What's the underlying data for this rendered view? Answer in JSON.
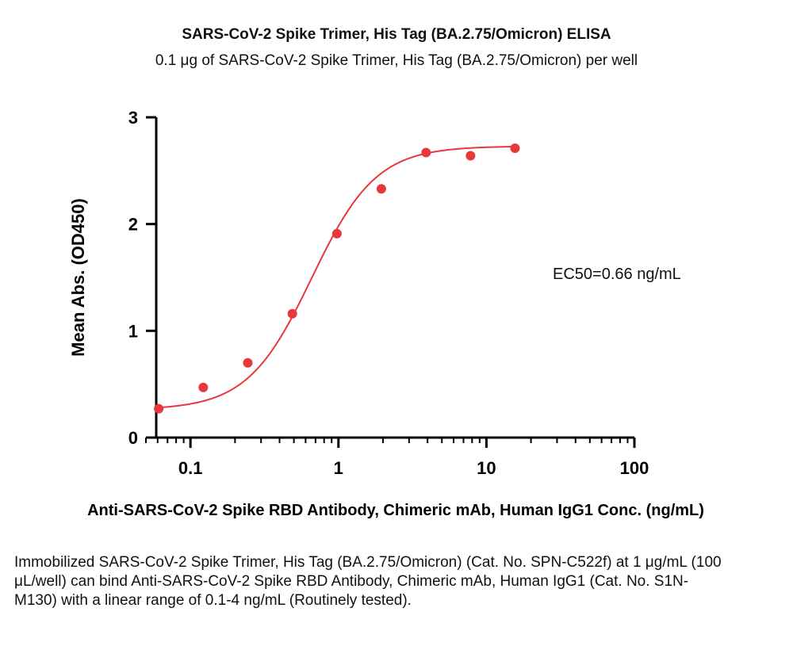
{
  "title": "SARS-CoV-2 Spike Trimer, His Tag (BA.2.75/Omicron) ELISA",
  "subtitle": "0.1 μg of SARS-CoV-2 Spike Trimer, His Tag (BA.2.75/Omicron) per well",
  "caption": "Immobilized SARS-CoV-2 Spike Trimer, His Tag (BA.2.75/Omicron) (Cat. No. SPN-C522f) at 1 μg/mL (100 μL/well) can bind Anti-SARS-CoV-2 Spike RBD Antibody, Chimeric mAb, Human IgG1 (Cat. No. S1N-M130) with a linear range of 0.1-4 ng/mL (Routinely tested).",
  "colors": {
    "series": "#e8383c",
    "axis": "#000000"
  },
  "chart_data": {
    "type": "scatter",
    "xscale": "log",
    "xlim": [
      0.05,
      100
    ],
    "ylim": [
      0,
      3
    ],
    "xticks": [
      0.1,
      1,
      10,
      100
    ],
    "xtick_labels": [
      "0.1",
      "1",
      "10",
      "100"
    ],
    "yticks": [
      0,
      1,
      2,
      3
    ],
    "ytick_labels": [
      "0",
      "1",
      "2",
      "3"
    ],
    "xlabel": "Anti-SARS-CoV-2 Spike RBD Antibody, Chimeric mAb, Human IgG1 Conc. (ng/mL)",
    "ylabel": "Mean Abs. (OD450)",
    "grid": false,
    "annotation": "EC50=0.66 ng/mL",
    "series": [
      {
        "x": [
          0.061,
          0.122,
          0.244,
          0.488,
          0.977,
          1.95,
          3.91,
          7.81,
          15.6
        ],
        "y": [
          0.27,
          0.47,
          0.7,
          1.16,
          1.91,
          2.33,
          2.67,
          2.64,
          2.71
        ],
        "fit": {
          "model": "4PL",
          "bottom": 0.26,
          "top": 2.73,
          "ec50": 0.66,
          "hill": 2.0
        }
      }
    ]
  }
}
